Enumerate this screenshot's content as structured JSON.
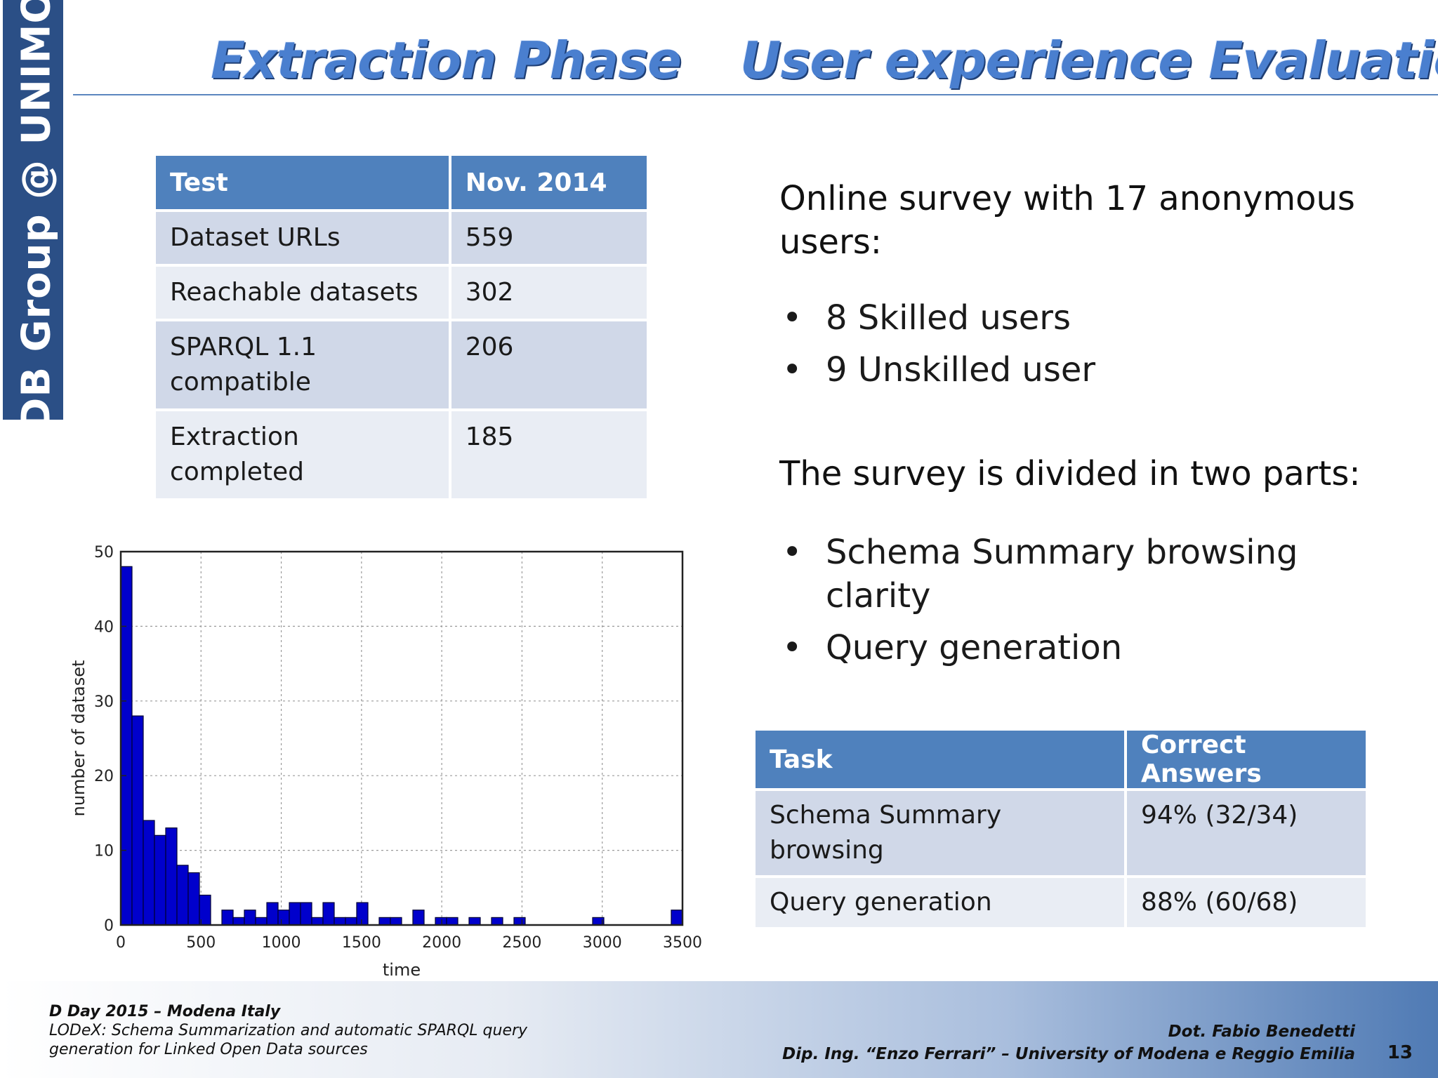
{
  "side_band": {
    "text": "DB Group @ UNIMO"
  },
  "titles": {
    "left": "Extraction Phase",
    "right": "User experience Evaluation"
  },
  "extraction_table": {
    "headers": [
      "Test",
      "Nov. 2014"
    ],
    "rows": [
      [
        "Dataset URLs",
        "559"
      ],
      [
        "Reachable datasets",
        "302"
      ],
      [
        "SPARQL 1.1 compatible",
        "206"
      ],
      [
        "Extraction completed",
        "185"
      ]
    ]
  },
  "survey": {
    "intro": "Online survey with 17 anonymous users:",
    "users": [
      "8 Skilled users",
      "9 Unskilled user"
    ],
    "parts_intro": "The survey is divided in two parts:",
    "parts": [
      "Schema Summary browsing clarity",
      "Query generation"
    ]
  },
  "task_table": {
    "headers": [
      "Task",
      "Correct Answers"
    ],
    "rows": [
      [
        "Schema Summary browsing",
        "94% (32/34)"
      ],
      [
        "Query generation",
        "88% (60/68)"
      ]
    ]
  },
  "chart_data": {
    "type": "bar",
    "title": "",
    "xlabel": "time",
    "ylabel": "number of dataset",
    "xlim": [
      0,
      3500
    ],
    "ylim": [
      0,
      50
    ],
    "x_ticks": [
      "0",
      "500",
      "1000",
      "1500",
      "2000",
      "2500",
      "3000",
      "3500"
    ],
    "y_ticks": [
      "0",
      "10",
      "20",
      "30",
      "40",
      "50"
    ],
    "grid": true,
    "bin_width": 70,
    "bin_starts": [
      0,
      70,
      140,
      210,
      280,
      350,
      420,
      490,
      560,
      630,
      700,
      770,
      840,
      910,
      980,
      1050,
      1120,
      1190,
      1260,
      1330,
      1400,
      1470,
      1540,
      1610,
      1680,
      1750,
      1820,
      1890,
      1960,
      2030,
      2100,
      2170,
      2240,
      2310,
      2380,
      2450,
      2520,
      2590,
      2660,
      2730,
      2800,
      2870,
      2940,
      3010,
      3080,
      3150,
      3220,
      3290,
      3360,
      3430
    ],
    "values": [
      48,
      28,
      14,
      12,
      13,
      8,
      7,
      4,
      0,
      2,
      1,
      2,
      1,
      3,
      2,
      3,
      3,
      1,
      3,
      1,
      1,
      3,
      0,
      1,
      1,
      0,
      2,
      0,
      1,
      1,
      0,
      1,
      0,
      1,
      0,
      1,
      0,
      0,
      0,
      0,
      0,
      0,
      1,
      0,
      0,
      0,
      0,
      0,
      0,
      2
    ]
  },
  "footer": {
    "event": "D Day 2015 – Modena Italy",
    "paper_line1": "LODeX: Schema Summarization and automatic SPARQL query",
    "paper_line2": "generation for Linked Open Data sources",
    "author": "Dot. Fabio Benedetti",
    "affiliation": "Dip. Ing. “Enzo Ferrari” – University of Modena e Reggio Emilia",
    "page_number": "13"
  },
  "colors": {
    "side_band": "#2b4f86",
    "title": "#4a7fcf",
    "table_header": "#4f81bd",
    "table_row_odd": "#d0d8e8",
    "table_row_even": "#e9edf4",
    "bar_fill": "#0000cc"
  }
}
